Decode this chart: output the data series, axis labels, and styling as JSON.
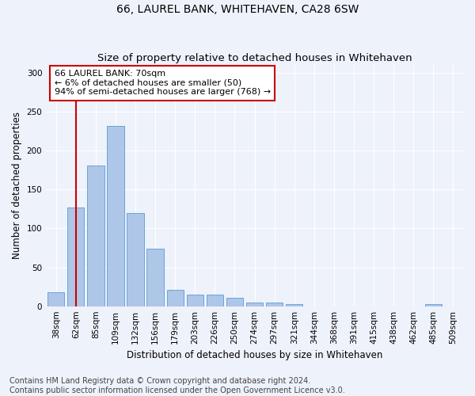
{
  "title": "66, LAUREL BANK, WHITEHAVEN, CA28 6SW",
  "subtitle": "Size of property relative to detached houses in Whitehaven",
  "xlabel": "Distribution of detached houses by size in Whitehaven",
  "ylabel": "Number of detached properties",
  "categories": [
    "38sqm",
    "62sqm",
    "85sqm",
    "109sqm",
    "132sqm",
    "156sqm",
    "179sqm",
    "203sqm",
    "226sqm",
    "250sqm",
    "274sqm",
    "297sqm",
    "321sqm",
    "344sqm",
    "368sqm",
    "391sqm",
    "415sqm",
    "438sqm",
    "462sqm",
    "485sqm",
    "509sqm"
  ],
  "values": [
    18,
    127,
    181,
    232,
    120,
    74,
    21,
    15,
    15,
    11,
    5,
    5,
    3,
    0,
    0,
    0,
    0,
    0,
    0,
    3,
    0
  ],
  "bar_color": "#aec6e8",
  "bar_edge_color": "#5b9bd5",
  "marker_line_color": "#cc0000",
  "annotation_text": "66 LAUREL BANK: 70sqm\n← 6% of detached houses are smaller (50)\n94% of semi-detached houses are larger (768) →",
  "annotation_box_color": "#ffffff",
  "annotation_box_edge_color": "#cc0000",
  "ylim": [
    0,
    310
  ],
  "yticks": [
    0,
    50,
    100,
    150,
    200,
    250,
    300
  ],
  "footer_line1": "Contains HM Land Registry data © Crown copyright and database right 2024.",
  "footer_line2": "Contains public sector information licensed under the Open Government Licence v3.0.",
  "bg_color": "#eef2fb",
  "plot_bg_color": "#eef2fb",
  "title_fontsize": 10,
  "axis_label_fontsize": 8.5,
  "tick_fontsize": 7.5,
  "annotation_fontsize": 8,
  "footer_fontsize": 7
}
